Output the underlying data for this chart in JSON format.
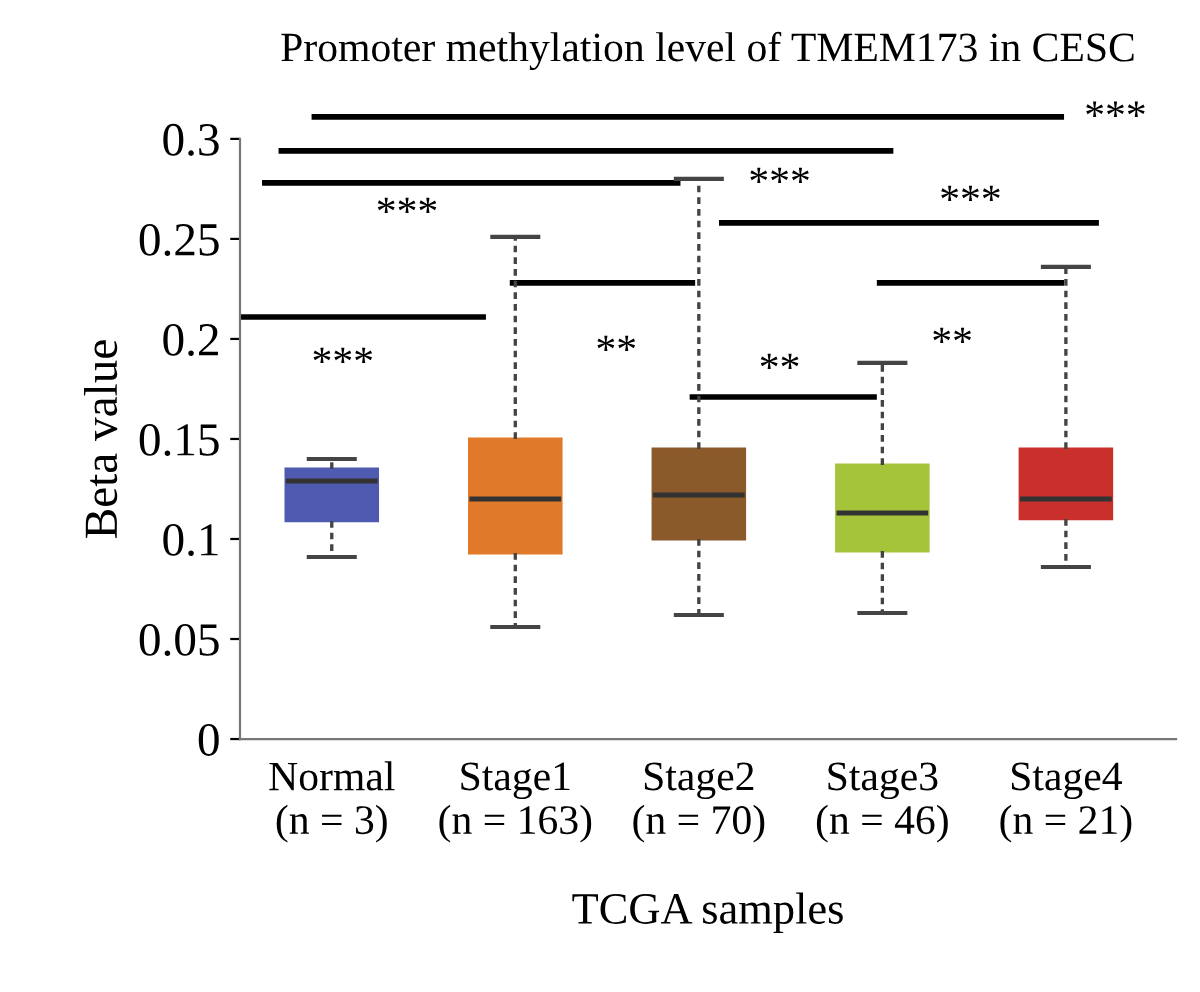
{
  "chart_data": {
    "type": "box",
    "title": "Promoter methylation level of TMEM173 in CESC",
    "xlabel": "TCGA samples",
    "ylabel": "Beta value",
    "categories": [
      "Normal\n(n = 3)",
      "Stage1\n(n = 163)",
      "Stage2\n(n = 70)",
      "Stage3\n(n = 46)",
      "Stage4\n(n = 21)"
    ],
    "colors": [
      "#4f5bb0",
      "#e07a2a",
      "#8b5a2b",
      "#a6c43a",
      "#c9302c"
    ],
    "boxes": [
      {
        "low": 0.091,
        "q1": 0.109,
        "median": 0.129,
        "q3": 0.135,
        "high": 0.14
      },
      {
        "low": 0.056,
        "q1": 0.093,
        "median": 0.12,
        "q3": 0.15,
        "high": 0.251
      },
      {
        "low": 0.062,
        "q1": 0.1,
        "median": 0.122,
        "q3": 0.145,
        "high": 0.28
      },
      {
        "low": 0.063,
        "q1": 0.094,
        "median": 0.113,
        "q3": 0.137,
        "high": 0.188
      },
      {
        "low": 0.086,
        "q1": 0.11,
        "median": 0.12,
        "q3": 0.145,
        "high": 0.236
      }
    ],
    "ylim": [
      0,
      0.3
    ],
    "yticks": [
      0,
      0.05,
      0.1,
      0.15,
      0.2,
      0.25,
      0.3
    ],
    "annotations": [
      "***",
      "***",
      "***",
      "**",
      "***",
      "***",
      "**",
      "**"
    ],
    "grid": false,
    "legend": false
  }
}
